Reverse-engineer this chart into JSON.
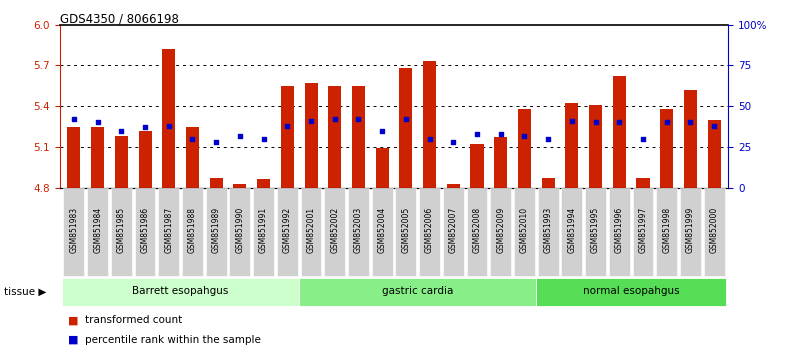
{
  "title": "GDS4350 / 8066198",
  "samples": [
    "GSM851983",
    "GSM851984",
    "GSM851985",
    "GSM851986",
    "GSM851987",
    "GSM851988",
    "GSM851989",
    "GSM851990",
    "GSM851991",
    "GSM851992",
    "GSM852001",
    "GSM852002",
    "GSM852003",
    "GSM852004",
    "GSM852005",
    "GSM852006",
    "GSM852007",
    "GSM852008",
    "GSM852009",
    "GSM852010",
    "GSM851993",
    "GSM851994",
    "GSM851995",
    "GSM851996",
    "GSM851997",
    "GSM851998",
    "GSM851999",
    "GSM852000"
  ],
  "transformed_count": [
    5.25,
    5.25,
    5.18,
    5.22,
    5.82,
    5.25,
    4.87,
    4.83,
    4.86,
    5.55,
    5.57,
    5.55,
    5.55,
    5.09,
    5.68,
    5.73,
    4.83,
    5.12,
    5.17,
    5.38,
    4.87,
    5.42,
    5.41,
    5.62,
    4.87,
    5.38,
    5.52,
    5.3
  ],
  "percentile_rank": [
    42,
    40,
    35,
    37,
    38,
    30,
    28,
    32,
    30,
    38,
    41,
    42,
    42,
    35,
    42,
    30,
    28,
    33,
    33,
    32,
    30,
    41,
    40,
    40,
    30,
    40,
    40,
    38
  ],
  "groups": [
    {
      "label": "Barrett esopahgus",
      "start": 0,
      "end": 9,
      "color": "#ccffcc"
    },
    {
      "label": "gastric cardia",
      "start": 10,
      "end": 19,
      "color": "#88ee88"
    },
    {
      "label": "normal esopahgus",
      "start": 20,
      "end": 27,
      "color": "#55dd55"
    }
  ],
  "ylim_left": [
    4.8,
    6.0
  ],
  "yticks_left": [
    4.8,
    5.1,
    5.4,
    5.7,
    6.0
  ],
  "ylim_right": [
    0,
    100
  ],
  "yticks_right": [
    0,
    25,
    50,
    75,
    100
  ],
  "yticklabels_right": [
    "0",
    "25",
    "50",
    "75",
    "100%"
  ],
  "bar_color": "#cc2200",
  "dot_color": "#0000cc",
  "bar_bottom": 4.8,
  "axis_label_color_left": "#cc2200",
  "axis_label_color_right": "#0000cc"
}
